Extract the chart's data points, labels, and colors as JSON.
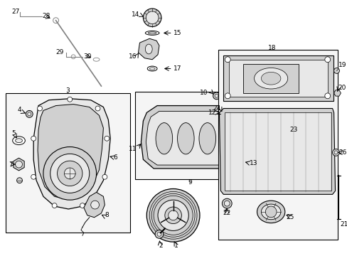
{
  "bg_color": "#ffffff",
  "line_color": "#000000",
  "gray1": "#b0b0b0",
  "gray2": "#d0d0d0",
  "gray3": "#e8e8e8",
  "figsize": [
    4.89,
    3.6
  ],
  "dpi": 100
}
